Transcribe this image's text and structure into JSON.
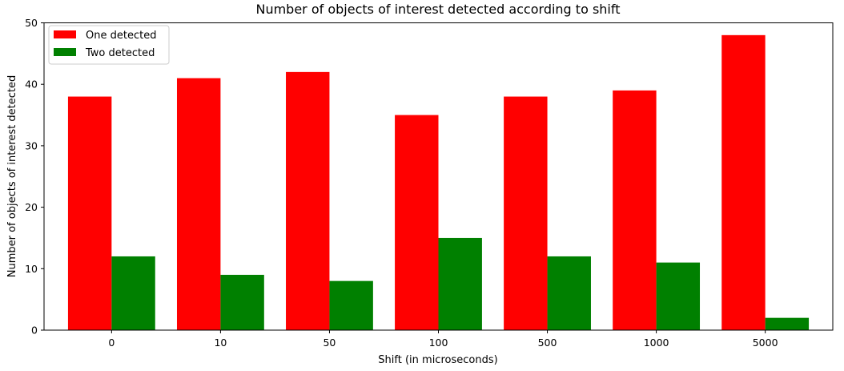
{
  "chart_data": {
    "type": "bar",
    "title": "Number of objects of interest detected according to shift",
    "xlabel": "Shift (in microseconds)",
    "ylabel": "Number of objects of interest detected",
    "categories": [
      "0",
      "10",
      "50",
      "100",
      "500",
      "1000",
      "5000"
    ],
    "series": [
      {
        "name": "One detected",
        "color": "#ff0000",
        "values": [
          38,
          41,
          42,
          35,
          38,
          39,
          48
        ]
      },
      {
        "name": "Two detected",
        "color": "#008000",
        "values": [
          12,
          9,
          8,
          15,
          12,
          11,
          2
        ]
      }
    ],
    "ylim": [
      0,
      50
    ],
    "yticks": [
      0,
      10,
      20,
      30,
      40,
      50
    ],
    "grid": false,
    "legend_position": "top-left"
  }
}
